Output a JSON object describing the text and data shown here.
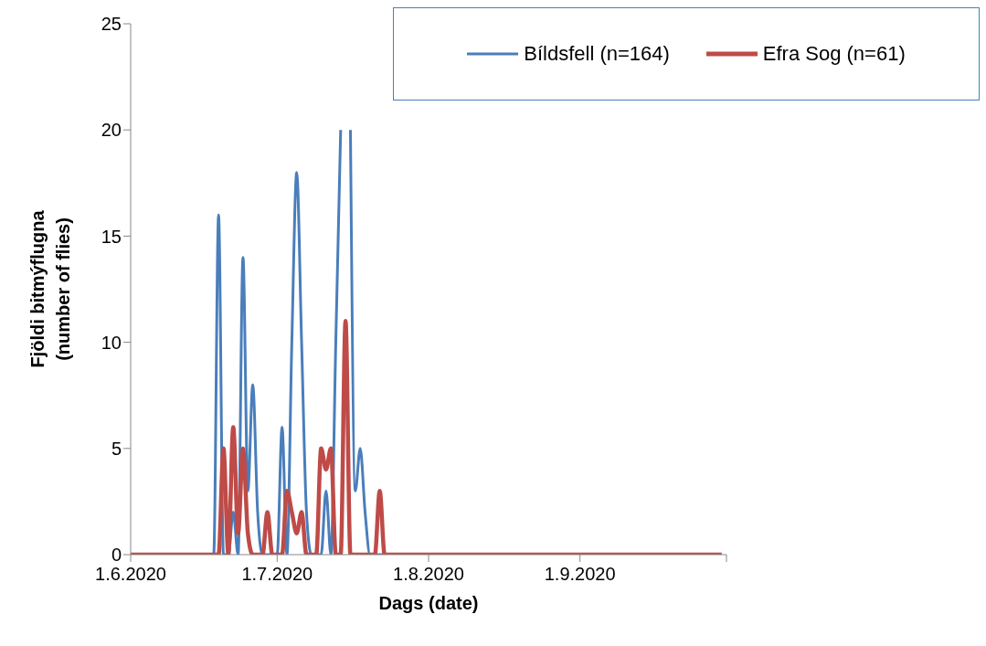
{
  "chart_data": {
    "type": "line",
    "xlabel": "Dags (date)",
    "ylabel": "Fjöldi bitmýflugna\n(number of flies)",
    "x": [
      "2020-06-01",
      "2020-06-17",
      "2020-06-18",
      "2020-06-19",
      "2020-06-20",
      "2020-06-21",
      "2020-06-22",
      "2020-06-23",
      "2020-06-24",
      "2020-06-25",
      "2020-06-26",
      "2020-06-27",
      "2020-06-28",
      "2020-06-29",
      "2020-06-30",
      "2020-07-01",
      "2020-07-02",
      "2020-07-03",
      "2020-07-04",
      "2020-07-05",
      "2020-07-06",
      "2020-07-07",
      "2020-07-08",
      "2020-07-09",
      "2020-07-10",
      "2020-07-11",
      "2020-07-12",
      "2020-07-13",
      "2020-07-14",
      "2020-07-15",
      "2020-07-16",
      "2020-07-17",
      "2020-07-18",
      "2020-07-19",
      "2020-07-20",
      "2020-07-21",
      "2020-07-22",
      "2020-07-23",
      "2020-07-24",
      "2020-09-30"
    ],
    "series": [
      {
        "name": "Bíldsfell (n=164)",
        "color": "#4a7ebb",
        "values": [
          0,
          0,
          0,
          16,
          0,
          0,
          2,
          0,
          14,
          3,
          8,
          2,
          0,
          0,
          0,
          0,
          6,
          0,
          10,
          18,
          10,
          2,
          0,
          0,
          0,
          3,
          0,
          10,
          20,
          null,
          20,
          3,
          5,
          2,
          0,
          0,
          0,
          0,
          0,
          0
        ]
      },
      {
        "name": "Efra Sog (n=61)",
        "color": "#be4b48",
        "values": [
          0,
          0,
          0,
          0,
          5,
          0,
          6,
          1,
          5,
          1,
          0,
          0,
          0,
          2,
          0,
          0,
          0,
          3,
          2,
          1,
          2,
          0,
          0,
          0,
          5,
          4,
          5,
          0,
          0,
          11,
          0,
          0,
          0,
          0,
          0,
          0,
          3,
          0,
          0,
          0
        ]
      }
    ],
    "xlim": [
      "2020-06-01",
      "2020-10-01"
    ],
    "xticks": [
      {
        "value": "2020-06-01",
        "label": "1.6.2020"
      },
      {
        "value": "2020-07-01",
        "label": "1.7.2020"
      },
      {
        "value": "2020-08-01",
        "label": "1.8.2020"
      },
      {
        "value": "2020-09-01",
        "label": "1.9.2020"
      },
      {
        "value": "2020-10-01",
        "label": null
      }
    ],
    "ylim": [
      0,
      25
    ],
    "yticks": [
      0,
      5,
      10,
      15,
      20,
      25
    ],
    "grid": false,
    "legend": "top right",
    "marker": "none",
    "line_style": "solid"
  }
}
